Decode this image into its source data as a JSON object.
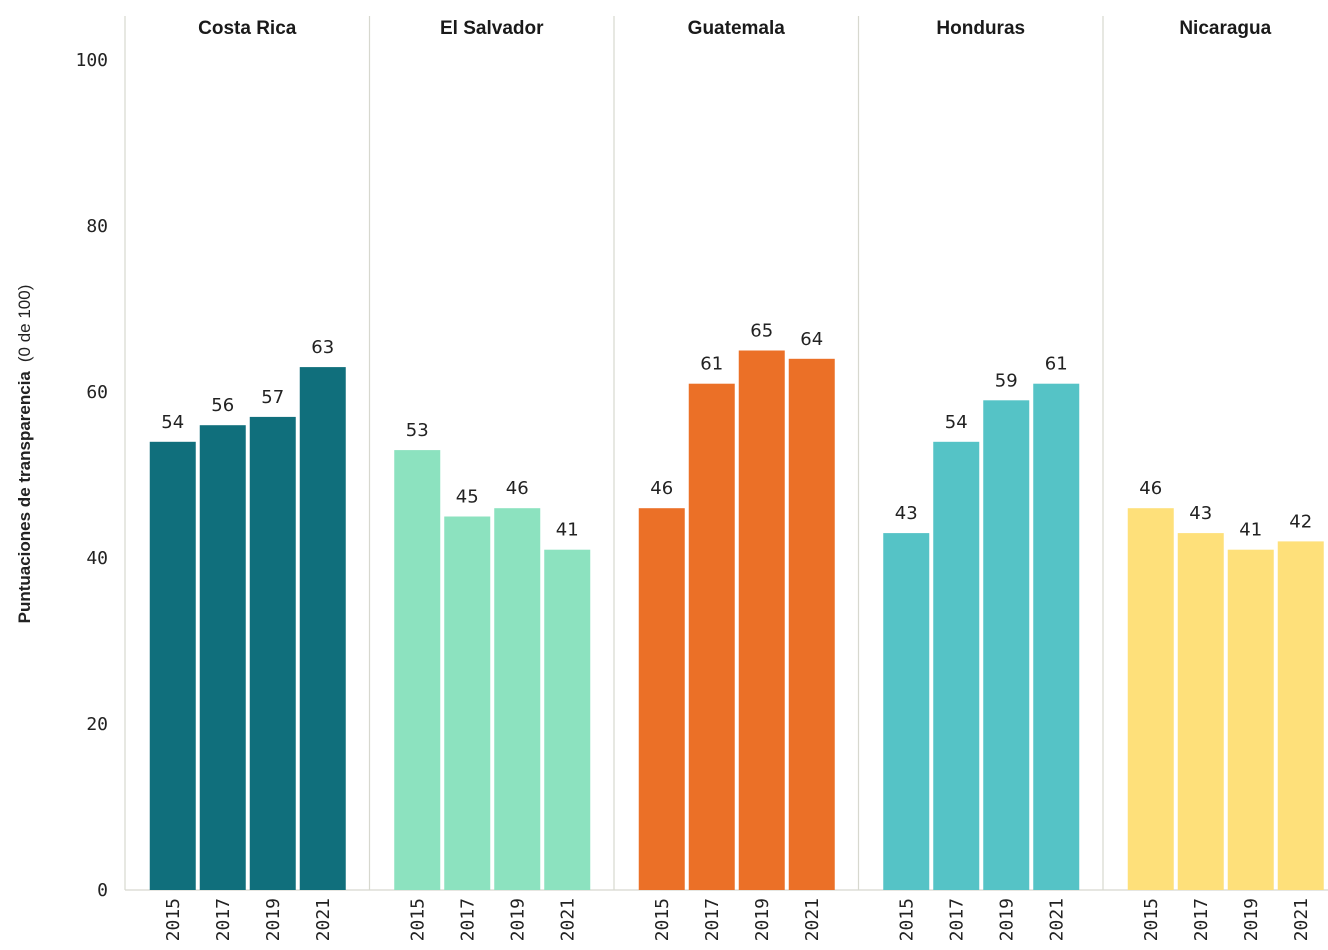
{
  "chart_data": {
    "type": "bar",
    "ylabel_bold": "Puntuaciones de transparencia",
    "ylabel_normal": "(0 de 100)",
    "ylim": [
      0,
      100
    ],
    "yticks": [
      "0",
      "20",
      "40",
      "60",
      "80",
      "100"
    ],
    "grid": false,
    "categories": [
      "2015",
      "2017",
      "2019",
      "2021"
    ],
    "panels": [
      {
        "name": "Costa Rica",
        "color": "#106f7c",
        "values": [
          54,
          56,
          57,
          63
        ]
      },
      {
        "name": "El Salvador",
        "color": "#8ce2bf",
        "values": [
          53,
          45,
          46,
          41
        ]
      },
      {
        "name": "Guatemala",
        "color": "#eb7027",
        "values": [
          46,
          61,
          65,
          64
        ]
      },
      {
        "name": "Honduras",
        "color": "#55c3c6",
        "values": [
          43,
          54,
          59,
          61
        ]
      },
      {
        "name": "Nicaragua",
        "color": "#fee07a",
        "values": [
          46,
          43,
          41,
          42
        ]
      }
    ]
  }
}
